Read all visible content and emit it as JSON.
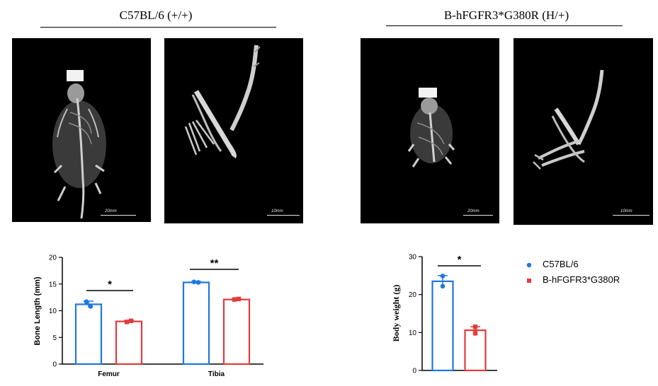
{
  "groups": [
    {
      "title": "C57BL/6 (+/+)"
    },
    {
      "title": "B-hFGFR3*G380R (H/+)"
    }
  ],
  "images": [
    {
      "id": "wt-whole",
      "scale_label": "20mm"
    },
    {
      "id": "wt-limb",
      "scale_label": "10mm"
    },
    {
      "id": "mut-whole",
      "scale_label": "20mm"
    },
    {
      "id": "mut-limb",
      "scale_label": "10mm"
    }
  ],
  "colors": {
    "c57": "#1f77e0",
    "mut": "#e03c3c"
  },
  "legend": [
    {
      "name": "C57BL/6",
      "marker": "circle"
    },
    {
      "name": "B-hFGFR3*G380R",
      "marker": "square"
    }
  ],
  "chart_data": [
    {
      "type": "bar",
      "ylabel": "Bone Length (mm)",
      "xlabel": "",
      "ylim": [
        0,
        20
      ],
      "yticks": [
        "0",
        "5",
        "10",
        "15",
        "20"
      ],
      "categories": [
        "Femur",
        "Tibia"
      ],
      "series": [
        {
          "name": "C57BL/6",
          "values": [
            11.2,
            15.3
          ],
          "sem": [
            0.6,
            0.15
          ],
          "points": [
            [
              11.7,
              10.8
            ],
            [
              15.4,
              15.3
            ]
          ]
        },
        {
          "name": "B-hFGFR3*G380R",
          "values": [
            8.0,
            12.1
          ],
          "sem": [
            0.15,
            0.1
          ],
          "points": [
            [
              7.9,
              8.1
            ],
            [
              12.1,
              12.2
            ]
          ]
        }
      ],
      "significance": [
        "*",
        "**"
      ]
    },
    {
      "type": "bar",
      "ylabel": "Body weight (g)",
      "xlabel": "",
      "ylim": [
        0,
        30
      ],
      "yticks": [
        "0",
        "10",
        "20",
        "30"
      ],
      "categories": [
        ""
      ],
      "series": [
        {
          "name": "C57BL/6",
          "values": [
            23.5
          ],
          "sem": [
            1.5
          ],
          "points": [
            [
              24.9,
              22.2
            ]
          ]
        },
        {
          "name": "B-hFGFR3*G380R",
          "values": [
            10.6
          ],
          "sem": [
            0.9
          ],
          "points": [
            [
              11.5,
              9.8
            ]
          ]
        }
      ],
      "significance": [
        "*"
      ]
    }
  ]
}
